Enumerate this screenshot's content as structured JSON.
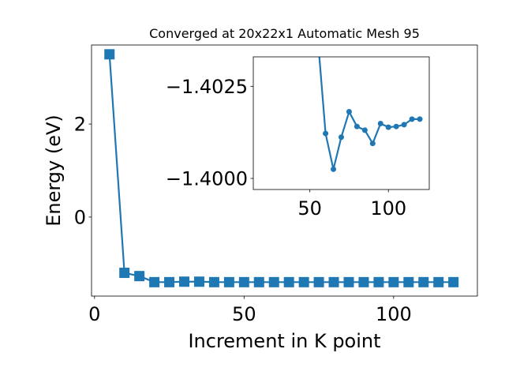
{
  "chart_data": [
    {
      "type": "line",
      "title": "Converged at 20x22x1 Automatic Mesh 95",
      "xlabel": "Increment in K point",
      "ylabel": "Energy (eV)",
      "xlim": [
        -1,
        128
      ],
      "ylim": [
        -1.7,
        3.7
      ],
      "x_ticks": [
        0,
        50,
        100
      ],
      "x_tick_labels": [
        "0",
        "50",
        "100"
      ],
      "y_ticks": [
        0,
        2
      ],
      "y_tick_labels": [
        "0",
        "2"
      ],
      "marker": "square",
      "grid": false,
      "series": [
        {
          "x": [
            5,
            10,
            15,
            20,
            25,
            30,
            35,
            40,
            45,
            50,
            55,
            60,
            65,
            70,
            75,
            80,
            85,
            90,
            95,
            100,
            105,
            110,
            115,
            120
          ],
          "y": [
            3.5,
            -1.2,
            -1.27,
            -1.4,
            -1.4,
            -1.39,
            -1.39,
            -1.4,
            -1.4,
            -1.4,
            -1.4,
            -1.4,
            -1.4,
            -1.4,
            -1.4,
            -1.4,
            -1.4,
            -1.4,
            -1.4,
            -1.4,
            -1.4,
            -1.4,
            -1.4,
            -1.4
          ]
        }
      ]
    },
    {
      "type": "line",
      "title": "",
      "xlabel": "",
      "ylabel": "",
      "xlim": [
        14,
        126
      ],
      "ylim": [
        -1.3997,
        -1.4033
      ],
      "x_ticks": [
        50,
        100
      ],
      "x_tick_labels": [
        "50",
        "100"
      ],
      "y_ticks": [
        -1.4,
        -1.4025
      ],
      "y_tick_labels": [
        "−1.4000",
        "−1.4025"
      ],
      "marker": "circle",
      "grid": false,
      "series": [
        {
          "x": [
            55,
            60,
            65,
            70,
            75,
            80,
            85,
            90,
            95,
            100,
            105,
            110,
            115,
            120
          ],
          "y": [
            -1.40385,
            -1.40122,
            -1.40025,
            -1.40112,
            -1.40181,
            -1.40141,
            -1.40131,
            -1.40095,
            -1.40149,
            -1.40139,
            -1.40141,
            -1.40146,
            -1.40161,
            -1.40161
          ]
        }
      ]
    }
  ],
  "colors": {
    "series": "#1f77b4",
    "axes": "#000000",
    "background": "#ffffff"
  }
}
